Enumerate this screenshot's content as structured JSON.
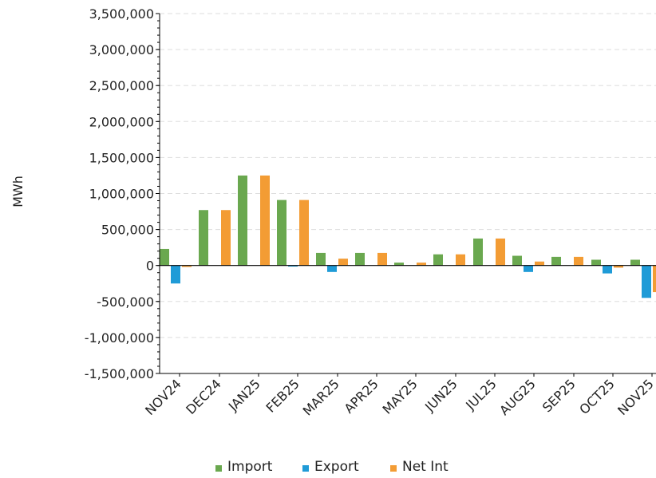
{
  "chart_data": {
    "type": "bar",
    "xlabel": "",
    "ylabel": "MWh",
    "ylim": [
      -1500000,
      3500000
    ],
    "yticks": [
      3500000,
      3000000,
      2500000,
      2000000,
      1500000,
      1000000,
      500000,
      0,
      -500000,
      -1000000,
      -1500000
    ],
    "ytick_labels": [
      "3,500,000",
      "3,000,000",
      "2,500,000",
      "2,000,000",
      "1,500,000",
      "1,000,000",
      "500,000",
      "0",
      "-500,000",
      "-1,000,000",
      "-1,500,000"
    ],
    "categories": [
      "NOV24",
      "DEC24",
      "JAN25",
      "FEB25",
      "MAR25",
      "APR25",
      "MAY25",
      "JUN25",
      "JUL25",
      "AUG25",
      "SEP25",
      "OCT25",
      "NOV25"
    ],
    "series": [
      {
        "name": "Import",
        "color": "#6aa84f",
        "values": [
          230000,
          770000,
          1250000,
          910000,
          175000,
          175000,
          40000,
          155000,
          375000,
          135000,
          120000,
          80000,
          80000
        ]
      },
      {
        "name": "Export",
        "color": "#1f9bd7",
        "values": [
          -250000,
          0,
          0,
          -15000,
          -90000,
          0,
          0,
          0,
          0,
          -90000,
          0,
          -110000,
          -450000
        ]
      },
      {
        "name": "Net Int",
        "color": "#f39c34",
        "values": [
          -20000,
          770000,
          1250000,
          910000,
          95000,
          175000,
          40000,
          155000,
          375000,
          55000,
          120000,
          -30000,
          -370000
        ]
      }
    ],
    "grid": true,
    "legend_position": "bottom"
  }
}
